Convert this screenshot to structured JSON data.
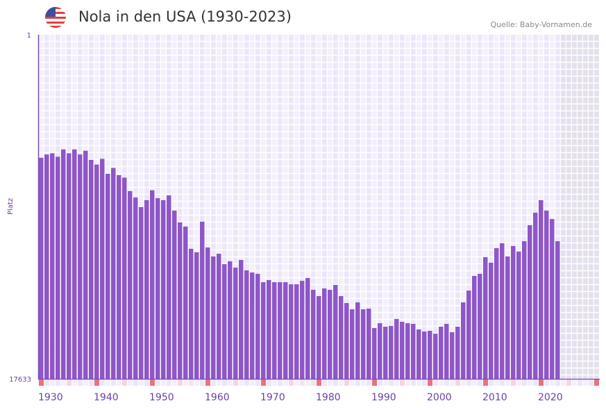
{
  "header": {
    "title": "Nola in den USA (1930-2023)",
    "source": "Quelle: Baby-Vornamen.de",
    "flag_icon": "us-flag-icon"
  },
  "colors": {
    "bar": "#8e56c8",
    "axis": "#7a4bb0",
    "grid_a": "#f3effb",
    "grid_b": "#ece6f8",
    "future": "#e4e0ec",
    "decade_marker": "#e8737a",
    "half_decade_marker": "#f5d6de"
  },
  "chart_data": {
    "type": "bar",
    "title": "Nola in den USA (1930-2023)",
    "xlabel": "",
    "ylabel": "Platz",
    "y_scale": "log",
    "y_inverted": true,
    "ylim": [
      1,
      17633
    ],
    "y_tick_labels": [
      "1",
      "17633"
    ],
    "x_range": [
      1930,
      2030
    ],
    "x_tick_labels": [
      "1930",
      "1940",
      "1950",
      "1960",
      "1970",
      "1980",
      "1990",
      "2000",
      "2010",
      "2020"
    ],
    "grid": true,
    "future_shaded_from": 2024,
    "categories": [
      1930,
      1931,
      1932,
      1933,
      1934,
      1935,
      1936,
      1937,
      1938,
      1939,
      1940,
      1941,
      1942,
      1943,
      1944,
      1945,
      1946,
      1947,
      1948,
      1949,
      1950,
      1951,
      1952,
      1953,
      1954,
      1955,
      1956,
      1957,
      1958,
      1959,
      1960,
      1961,
      1962,
      1963,
      1964,
      1965,
      1966,
      1967,
      1968,
      1969,
      1970,
      1971,
      1972,
      1973,
      1974,
      1975,
      1976,
      1977,
      1978,
      1979,
      1980,
      1981,
      1982,
      1983,
      1984,
      1985,
      1986,
      1987,
      1988,
      1989,
      1990,
      1991,
      1992,
      1993,
      1994,
      1995,
      1996,
      1997,
      1998,
      1999,
      2000,
      2001,
      2002,
      2003,
      2004,
      2005,
      2006,
      2007,
      2008,
      2009,
      2010,
      2011,
      2012,
      2013,
      2014,
      2015,
      2016,
      2017,
      2018,
      2019,
      2020,
      2021,
      2022,
      2023
    ],
    "values": [
      33,
      30,
      29,
      32,
      26,
      29,
      26,
      30,
      27,
      35,
      40,
      34,
      52,
      44,
      54,
      58,
      85,
      102,
      134,
      110,
      83,
      104,
      110,
      96,
      148,
      207,
      233,
      438,
      484,
      203,
      422,
      545,
      504,
      678,
      625,
      748,
      601,
      809,
      859,
      893,
      1132,
      1067,
      1132,
      1132,
      1132,
      1202,
      1202,
      1089,
      1005,
      1406,
      1680,
      1352,
      1406,
      1225,
      1680,
      2048,
      2445,
      2009,
      2445,
      2397,
      4169,
      3631,
      4009,
      3928,
      3222,
      3490,
      3631,
      3702,
      4335,
      4603,
      4508,
      4887,
      4009,
      3702,
      4689,
      4009,
      2009,
      1436,
      948,
      893,
      556,
      651,
      430,
      374,
      545,
      405,
      474,
      353,
      224,
      157,
      110,
      148,
      188,
      353
    ]
  }
}
